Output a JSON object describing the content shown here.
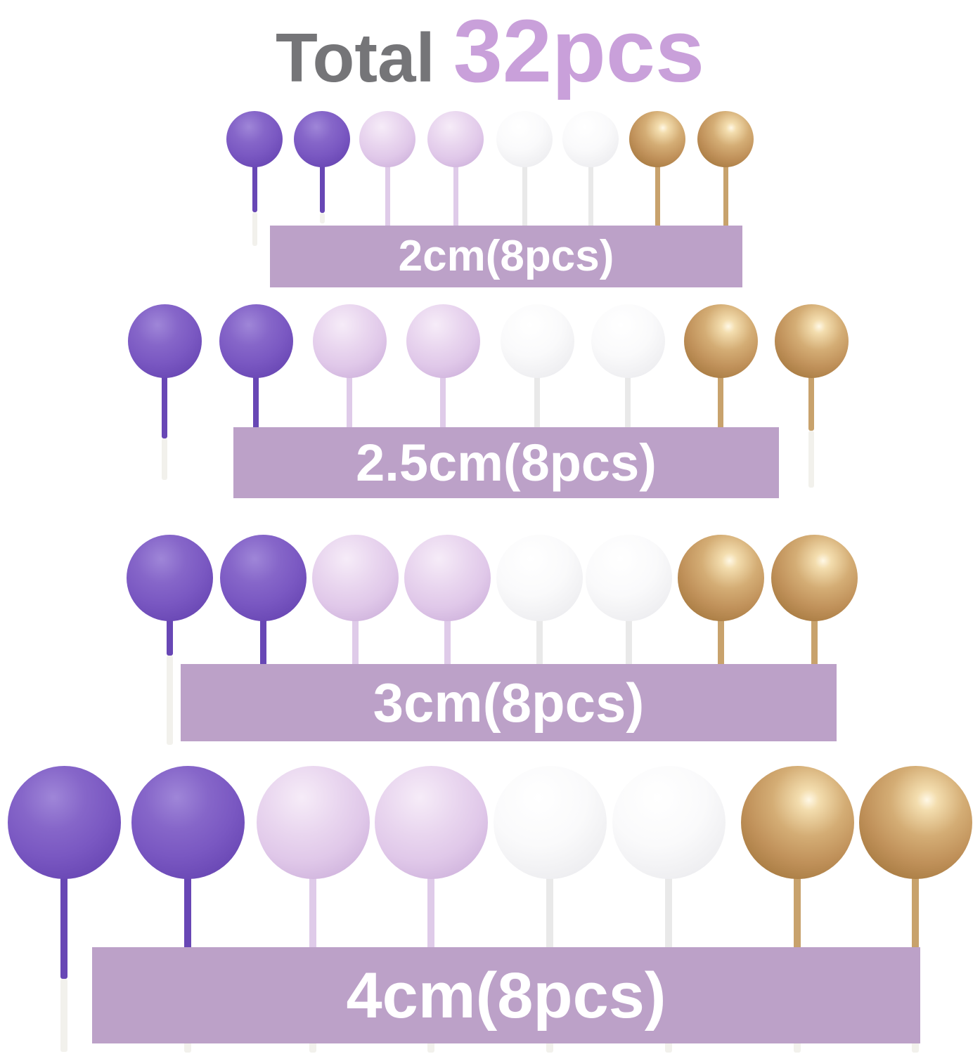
{
  "title": {
    "prefix": "Total",
    "count": "32pcs"
  },
  "total_pieces": 32,
  "rows": [
    {
      "label": "2cm(8pcs)",
      "size": "2cm",
      "pieces": 8
    },
    {
      "label": "2.5cm(8pcs)",
      "size": "2.5cm",
      "pieces": 8
    },
    {
      "label": "3cm(8pcs)",
      "size": "3cm",
      "pieces": 8
    },
    {
      "label": "4cm(8pcs)",
      "size": "4cm",
      "pieces": 8
    }
  ],
  "ball_color_order": [
    "purple",
    "purple",
    "lilac",
    "lilac",
    "white",
    "white",
    "gold",
    "gold"
  ],
  "palette": {
    "purple": {
      "gradient": "radial-gradient(circle at 40% 28%, #9f86d8 0%, #8666c9 30%, #7a58c2 55%, #5e3cab 100%)",
      "stick": "#6847b5"
    },
    "lilac": {
      "gradient": "radial-gradient(circle at 40% 28%, #f6ecf8 0%, #e9d6ef 35%, #e0c8e9 60%, #c5a6d5 100%)",
      "stick": "#dfcbe9"
    },
    "white": {
      "gradient": "radial-gradient(circle at 40% 28%, #ffffff 0%, #fafafb 45%, #ececef 85%, #e2e2e6 100%)",
      "stick": "#e9e9e9"
    },
    "gold": {
      "gradient": "radial-gradient(circle at 60% 30%, #fff8e6 0%, #f3ddae 10%, #d4ad75 35%, #c0915a 60%, #a5793f 85%, #8e6533 100%)",
      "stick": "#c8a26c"
    }
  },
  "colors": {
    "background": "#ffffff",
    "title_total": "#757578",
    "title_count": "#c9a0da",
    "band_bg": "#bca1c8",
    "band_text": "#ffffff",
    "stick_tip": "#f2f1ec"
  }
}
